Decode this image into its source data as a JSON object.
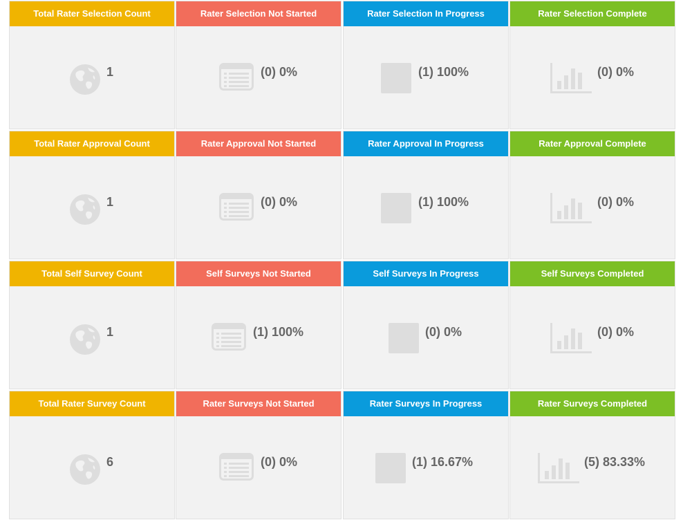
{
  "colors": {
    "total": "#f0b400",
    "not_started": "#f26d5b",
    "in_progress": "#0a9bdc",
    "complete": "#7cbf25",
    "tile_bg": "#f2f2f2",
    "icon": "#dddddd",
    "value_text": "#666666"
  },
  "rows": [
    {
      "section": "rater-selection",
      "tiles": [
        {
          "kind": "total",
          "icon": "globe-icon",
          "label": "Total Rater Selection Count",
          "value": "1"
        },
        {
          "kind": "not_started",
          "icon": "list-icon",
          "label": "Rater Selection Not Started",
          "value": "(0) 0%"
        },
        {
          "kind": "in_progress",
          "icon": "square-icon",
          "label": "Rater Selection In Progress",
          "value": "(1) 100%"
        },
        {
          "kind": "complete",
          "icon": "bar-chart-icon",
          "label": "Rater Selection Complete",
          "value": "(0) 0%"
        }
      ]
    },
    {
      "section": "rater-approval",
      "tiles": [
        {
          "kind": "total",
          "icon": "globe-icon",
          "label": "Total Rater Approval Count",
          "value": "1"
        },
        {
          "kind": "not_started",
          "icon": "list-icon",
          "label": "Rater Approval Not Started",
          "value": "(0) 0%"
        },
        {
          "kind": "in_progress",
          "icon": "square-icon",
          "label": "Rater Approval In Progress",
          "value": "(1) 100%"
        },
        {
          "kind": "complete",
          "icon": "bar-chart-icon",
          "label": "Rater Approval Complete",
          "value": "(0) 0%"
        }
      ]
    },
    {
      "section": "self-survey",
      "tiles": [
        {
          "kind": "total",
          "icon": "globe-icon",
          "label": "Total Self Survey Count",
          "value": "1"
        },
        {
          "kind": "not_started",
          "icon": "list-icon",
          "label": "Self Surveys Not Started",
          "value": "(1) 100%"
        },
        {
          "kind": "in_progress",
          "icon": "square-icon",
          "label": "Self Surveys In Progress",
          "value": "(0) 0%"
        },
        {
          "kind": "complete",
          "icon": "bar-chart-icon",
          "label": "Self Surveys Completed",
          "value": "(0) 0%"
        }
      ]
    },
    {
      "section": "rater-survey",
      "tiles": [
        {
          "kind": "total",
          "icon": "globe-icon",
          "label": "Total Rater Survey Count",
          "value": "6"
        },
        {
          "kind": "not_started",
          "icon": "list-icon",
          "label": "Rater Surveys Not Started",
          "value": "(0) 0%"
        },
        {
          "kind": "in_progress",
          "icon": "square-icon",
          "label": "Rater Surveys In Progress",
          "value": "(1) 16.67%"
        },
        {
          "kind": "complete",
          "icon": "bar-chart-icon",
          "label": "Rater Surveys Completed",
          "value": "(5) 83.33%"
        }
      ]
    }
  ]
}
